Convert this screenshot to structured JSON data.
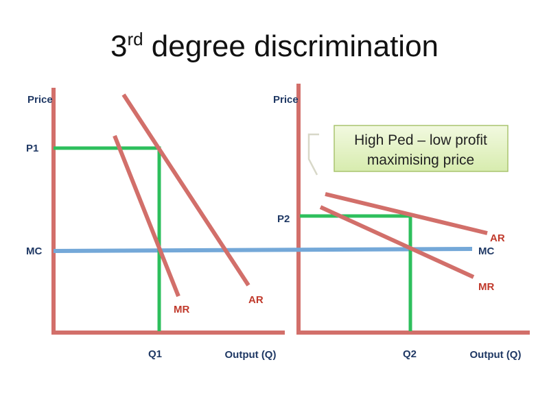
{
  "title": {
    "number": "3",
    "superscript": "rd",
    "text": " degree discrimination"
  },
  "left": {
    "y_label": "Price",
    "price_label": "P1",
    "mc_label": "MC",
    "mr_label": "MR",
    "ar_label": "AR",
    "quantity_label": "Q1",
    "x_label": "Output (Q)"
  },
  "right": {
    "y_label": "Price",
    "price_label": "P2",
    "mc_label": "MC",
    "mr_label": "MR",
    "ar_label": "AR",
    "quantity_label": "Q2",
    "x_label": "Output (Q)",
    "callout": {
      "lines": [
        "High Ped – low profit",
        "maximising price"
      ]
    }
  }
}
